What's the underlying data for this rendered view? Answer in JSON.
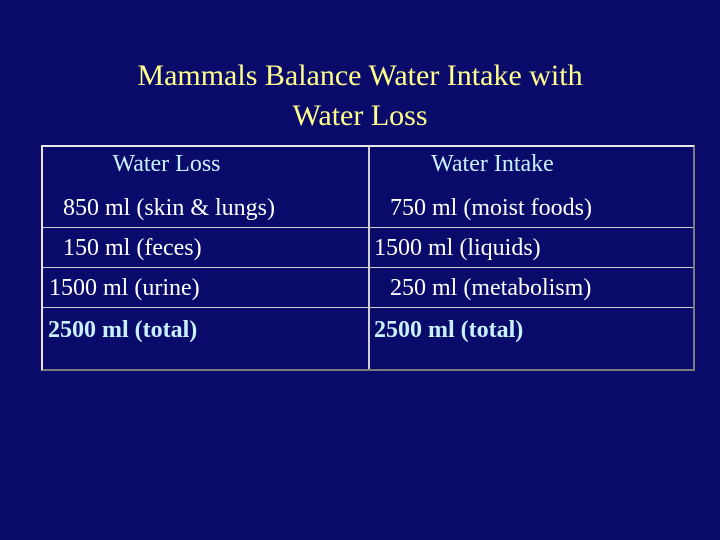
{
  "title": {
    "line1": "Mammals Balance Water Intake with",
    "line2": "Water Loss"
  },
  "water_loss": {
    "header": "Water Loss",
    "items": [
      "850 ml (skin & lungs)",
      "150 ml (feces)",
      "1500 ml (urine)"
    ],
    "total": "2500 ml (total)"
  },
  "water_intake": {
    "header": "Water Intake",
    "items": [
      "750 ml (moist foods)",
      "1500 ml (liquids)",
      "250 ml (metabolism)"
    ],
    "total": "2500 ml (total)"
  }
}
